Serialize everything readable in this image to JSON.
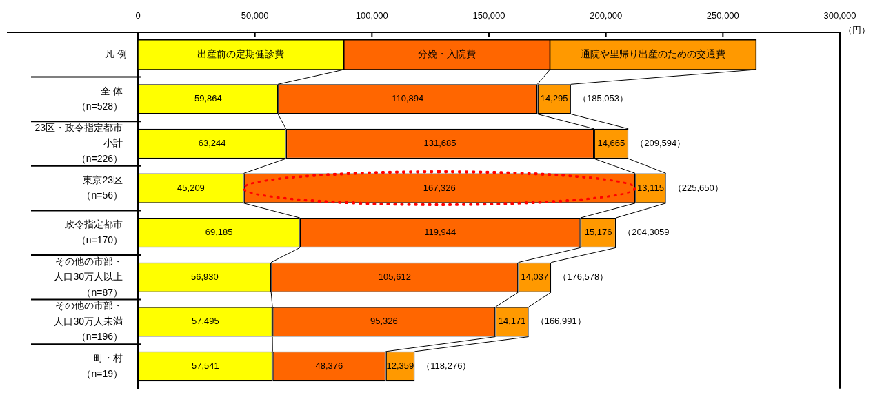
{
  "chart_data": {
    "type": "bar",
    "orientation": "horizontal",
    "stacked": true,
    "categories": [
      "全 体（n=528）",
      "23区・政令指定都市小計（n=226）",
      "東京23区（n=56）",
      "政令指定都市（n=170）",
      "その他の市部・人口30万人以上（n=87）",
      "その他の市部・人口30万人未満（n=196）",
      "町・村（n=19）"
    ],
    "series": [
      {
        "name": "出産前の定期健診費",
        "color": "#ffff00",
        "values": [
          59864,
          63244,
          45209,
          69185,
          56930,
          57495,
          57541
        ],
        "value_labels": [
          "59,864",
          "63,244",
          "45,209",
          "69,185",
          "56,930",
          "57,495",
          "57,541"
        ]
      },
      {
        "name": "分娩・入院費",
        "color": "#ff6600",
        "values": [
          110894,
          131685,
          167326,
          119944,
          105612,
          95326,
          48376
        ],
        "value_labels": [
          "110,894",
          "131,685",
          "167,326",
          "119,944",
          "105,612",
          "95,326",
          "48,376"
        ]
      },
      {
        "name": "通院や里帰り出産のための交通費",
        "color": "#ff9900",
        "values": [
          14295,
          14665,
          13115,
          15176,
          14037,
          14171,
          12359
        ],
        "value_labels": [
          "14,295",
          "14,665",
          "13,115",
          "15,176",
          "14,037",
          "14,171",
          "12,359"
        ]
      }
    ],
    "xlim": [
      0,
      300000
    ],
    "xticks": [
      0,
      {
        "value": 50000,
        "label": "50,000"
      },
      {
        "value": 100000,
        "label": "100,000"
      },
      {
        "value": 150000,
        "label": "150,000"
      },
      {
        "value": 200000,
        "label": "200,000"
      },
      {
        "value": 250000,
        "label": "250,000"
      },
      {
        "value": 300000,
        "label": "300,000"
      }
    ],
    "xlabel": "（円）",
    "legend": "top",
    "legend_title": "凡 例",
    "totals": [
      "（185,053）",
      "（209,594）",
      "（225,650）",
      "（204,3059",
      "（176,578）",
      "（166,991）",
      "（118,276）"
    ]
  }
}
